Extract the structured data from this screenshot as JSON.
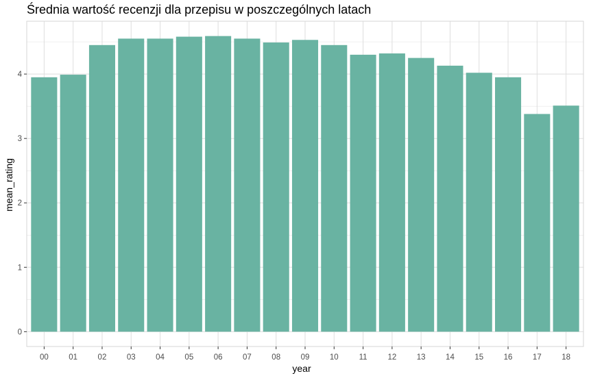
{
  "chart_data": {
    "type": "bar",
    "title": "Średnia wartość recenzji dla przepisu w poszczególnych latach",
    "xlabel": "year",
    "ylabel": "mean_rating",
    "categories": [
      "00",
      "01",
      "02",
      "03",
      "04",
      "05",
      "06",
      "07",
      "08",
      "09",
      "10",
      "11",
      "12",
      "13",
      "14",
      "15",
      "16",
      "17",
      "18"
    ],
    "values": [
      3.95,
      3.99,
      4.45,
      4.55,
      4.55,
      4.58,
      4.59,
      4.55,
      4.49,
      4.53,
      4.45,
      4.3,
      4.32,
      4.25,
      4.13,
      4.02,
      3.95,
      3.38,
      3.51
    ],
    "ylim": [
      -0.23,
      4.82
    ],
    "yticks": [
      0,
      1,
      2,
      3,
      4
    ],
    "grid": true,
    "legend": "none",
    "bar_color": "#69b3a2",
    "grid_color": "#dedede",
    "panel_border_color": "#d6d6d6"
  }
}
